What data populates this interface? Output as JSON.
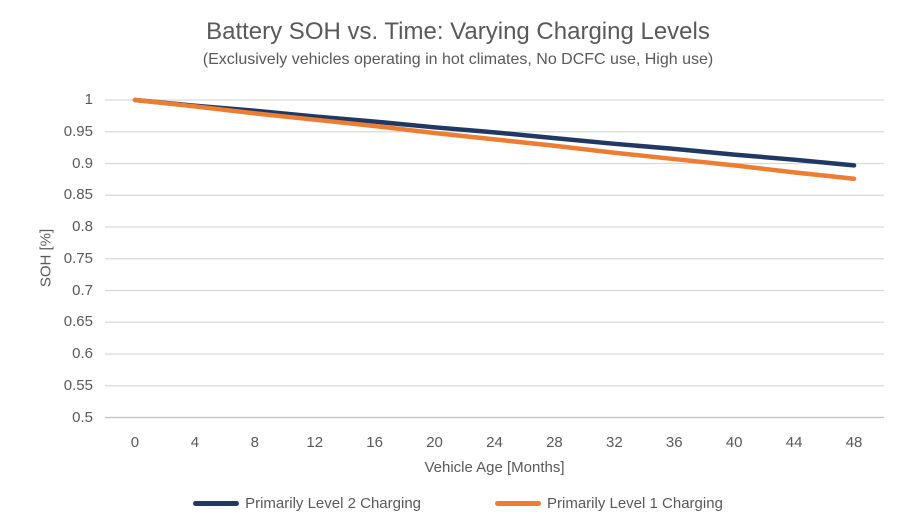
{
  "chart_data": {
    "type": "line",
    "title": "Battery SOH vs. Time: Varying Charging Levels",
    "subtitle": "(Exclusively vehicles operating in hot climates, No DCFC use, High use)",
    "xlabel": "Vehicle Age [Months]",
    "ylabel": "SOH [%]",
    "x": [
      0,
      4,
      8,
      12,
      16,
      20,
      24,
      28,
      32,
      36,
      40,
      44,
      48
    ],
    "xtick_labels": [
      "0",
      "4",
      "8",
      "12",
      "16",
      "20",
      "24",
      "28",
      "32",
      "36",
      "40",
      "44",
      "48"
    ],
    "yticks": [
      1,
      0.95,
      0.9,
      0.85,
      0.8,
      0.75,
      0.7,
      0.65,
      0.6,
      0.55,
      0.5
    ],
    "ytick_labels": [
      "1",
      "0.95",
      "0.9",
      "0.85",
      "0.8",
      "0.75",
      "0.7",
      "0.65",
      "0.6",
      "0.55",
      "0.5"
    ],
    "ylim": [
      0.5,
      1.0
    ],
    "xlim": [
      0,
      48
    ],
    "grid": "horizontal",
    "legend_position": "bottom",
    "series": [
      {
        "name": "Primarily Level 2 Charging",
        "color": "#1F3864",
        "values": [
          1.0,
          0.991,
          0.983,
          0.974,
          0.966,
          0.957,
          0.949,
          0.94,
          0.931,
          0.923,
          0.914,
          0.906,
          0.897
        ]
      },
      {
        "name": "Primarily Level 1 Charging",
        "color": "#ED7D31",
        "values": [
          1.0,
          0.99,
          0.979,
          0.969,
          0.959,
          0.948,
          0.938,
          0.928,
          0.917,
          0.907,
          0.897,
          0.886,
          0.876
        ]
      }
    ],
    "colors": {
      "title_text": "#595959",
      "axis_text": "#595959",
      "gridline": "#D9D9D9",
      "axis_line": "#BFBFBF",
      "background": "#FFFFFF"
    }
  }
}
